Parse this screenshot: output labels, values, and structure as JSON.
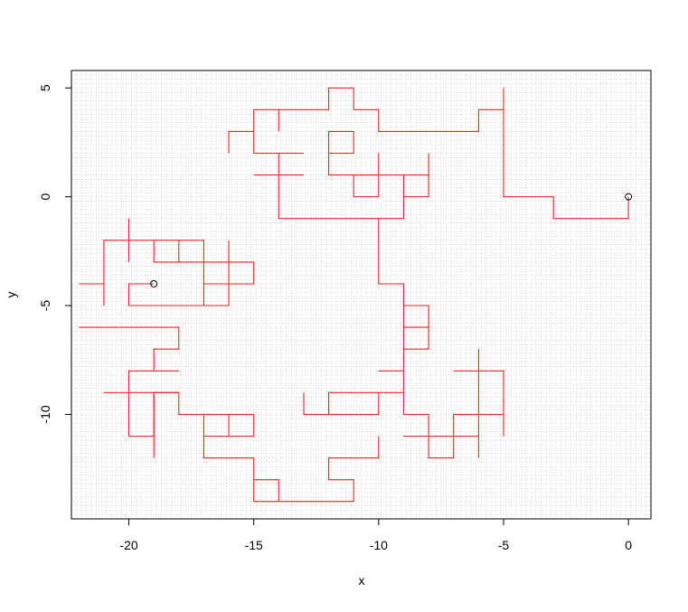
{
  "chart_data": {
    "type": "line",
    "title": "",
    "xlabel": "x",
    "ylabel": "y",
    "xlim": [
      -22.3,
      0.9
    ],
    "ylim": [
      -14.8,
      5.8
    ],
    "grid": true,
    "x_ticks": [
      {
        "value": -20,
        "label": "-20"
      },
      {
        "value": -15,
        "label": "-15"
      },
      {
        "value": -10,
        "label": "-10"
      },
      {
        "value": -5,
        "label": "-5"
      },
      {
        "value": 0,
        "label": "0"
      }
    ],
    "y_ticks": [
      {
        "value": 5,
        "label": "5"
      },
      {
        "value": 0,
        "label": "0"
      },
      {
        "value": -5,
        "label": "-5"
      },
      {
        "value": -10,
        "label": "-10"
      }
    ],
    "colors": {
      "path": "#ee2222",
      "grid": "#d0d0d0",
      "axis": "#000000"
    },
    "series": [
      {
        "segments": [
          [
            [
              0,
              0
            ],
            [
              0,
              -1
            ],
            [
              -3,
              -1
            ],
            [
              -3,
              0
            ],
            [
              -5,
              0
            ],
            [
              -5,
              5
            ]
          ],
          [
            [
              -5,
              4
            ],
            [
              -6,
              4
            ],
            [
              -6,
              3
            ],
            [
              -10,
              3
            ],
            [
              -10,
              4
            ],
            [
              -11,
              4
            ],
            [
              -11,
              5
            ],
            [
              -12,
              5
            ],
            [
              -12,
              4
            ],
            [
              -15,
              4
            ],
            [
              -15,
              3
            ],
            [
              -16,
              3
            ],
            [
              -16,
              2
            ]
          ],
          [
            [
              -15,
              3
            ],
            [
              -15,
              2
            ],
            [
              -13,
              2
            ]
          ],
          [
            [
              -14,
              4
            ],
            [
              -14,
              3
            ]
          ],
          [
            [
              -13,
              1
            ],
            [
              -15,
              1
            ]
          ],
          [
            [
              -14,
              2
            ],
            [
              -14,
              -1
            ],
            [
              -9,
              -1
            ],
            [
              -9,
              1
            ],
            [
              -12,
              1
            ],
            [
              -12,
              3
            ],
            [
              -11,
              3
            ],
            [
              -11,
              2
            ],
            [
              -12,
              2
            ]
          ],
          [
            [
              -10,
              2
            ],
            [
              -10,
              1
            ],
            [
              -11,
              1
            ],
            [
              -11,
              0
            ],
            [
              -10,
              0
            ],
            [
              -10,
              1
            ]
          ],
          [
            [
              -9,
              0
            ],
            [
              -8,
              0
            ],
            [
              -8,
              2
            ]
          ],
          [
            [
              -8,
              1
            ],
            [
              -9,
              1
            ]
          ],
          [
            [
              -10,
              -1
            ],
            [
              -10,
              -4
            ],
            [
              -9,
              -4
            ],
            [
              -9,
              -9
            ],
            [
              -10,
              -9
            ],
            [
              -10,
              -10
            ],
            [
              -12,
              -10
            ],
            [
              -12,
              -9
            ],
            [
              -10,
              -9
            ]
          ],
          [
            [
              -9,
              -5
            ],
            [
              -8,
              -5
            ],
            [
              -8,
              -7
            ],
            [
              -9,
              -7
            ]
          ],
          [
            [
              -9,
              -6
            ],
            [
              -8,
              -6
            ]
          ],
          [
            [
              -9,
              -8
            ],
            [
              -10,
              -8
            ]
          ],
          [
            [
              -9,
              -9
            ],
            [
              -9,
              -10
            ],
            [
              -8,
              -10
            ],
            [
              -8,
              -12
            ],
            [
              -7,
              -12
            ],
            [
              -7,
              -10
            ],
            [
              -5,
              -10
            ],
            [
              -5,
              -8
            ],
            [
              -7,
              -8
            ]
          ],
          [
            [
              -5,
              -10
            ],
            [
              -5,
              -11
            ]
          ],
          [
            [
              -6,
              -7
            ],
            [
              -6,
              -12
            ]
          ],
          [
            [
              -6,
              -11
            ],
            [
              -9,
              -11
            ]
          ],
          [
            [
              -12,
              -10
            ],
            [
              -13,
              -10
            ],
            [
              -13,
              -9
            ]
          ],
          [
            [
              -10,
              -11
            ],
            [
              -10,
              -12
            ],
            [
              -12,
              -12
            ],
            [
              -12,
              -13
            ],
            [
              -11,
              -13
            ],
            [
              -11,
              -14
            ],
            [
              -15,
              -14
            ],
            [
              -15,
              -13
            ],
            [
              -14,
              -13
            ],
            [
              -14,
              -14
            ]
          ],
          [
            [
              -15,
              -13
            ],
            [
              -15,
              -12
            ],
            [
              -17,
              -12
            ],
            [
              -17,
              -10
            ],
            [
              -15,
              -10
            ],
            [
              -15,
              -11
            ],
            [
              -17,
              -11
            ]
          ],
          [
            [
              -16,
              -10
            ],
            [
              -16,
              -11
            ]
          ],
          [
            [
              -17,
              -10
            ],
            [
              -18,
              -10
            ],
            [
              -18,
              -9
            ],
            [
              -21,
              -9
            ]
          ],
          [
            [
              -18,
              -9
            ],
            [
              -19,
              -9
            ],
            [
              -19,
              -11
            ],
            [
              -20,
              -11
            ],
            [
              -20,
              -8
            ],
            [
              -18,
              -8
            ]
          ],
          [
            [
              -19,
              -9
            ],
            [
              -19,
              -12
            ]
          ],
          [
            [
              -19,
              -8
            ],
            [
              -19,
              -7
            ],
            [
              -18,
              -7
            ],
            [
              -18,
              -6
            ],
            [
              -22,
              -6
            ]
          ],
          [
            [
              -21,
              -4
            ],
            [
              -22,
              -4
            ]
          ],
          [
            [
              -21,
              -5
            ],
            [
              -21,
              -2
            ],
            [
              -17,
              -2
            ],
            [
              -17,
              -3
            ],
            [
              -15,
              -3
            ],
            [
              -15,
              -4
            ],
            [
              -16,
              -4
            ],
            [
              -16,
              -2
            ]
          ],
          [
            [
              -20,
              -1
            ],
            [
              -20,
              -3
            ]
          ],
          [
            [
              -19,
              -2
            ],
            [
              -19,
              -3
            ],
            [
              -17,
              -3
            ]
          ],
          [
            [
              -18,
              -2
            ],
            [
              -18,
              -3
            ]
          ],
          [
            [
              -17,
              -3
            ],
            [
              -17,
              -5
            ],
            [
              -16,
              -5
            ],
            [
              -16,
              -4
            ],
            [
              -17,
              -4
            ]
          ],
          [
            [
              -17,
              -5
            ],
            [
              -20,
              -5
            ],
            [
              -20,
              -4
            ],
            [
              -19,
              -4
            ]
          ]
        ]
      }
    ],
    "markers": [
      {
        "x": 0,
        "y": 0
      },
      {
        "x": -19,
        "y": -4
      }
    ]
  }
}
